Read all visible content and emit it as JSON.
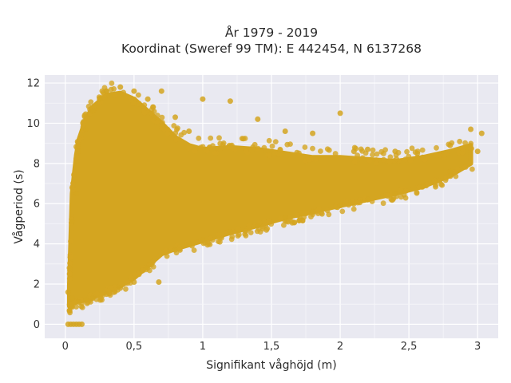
{
  "chart_data": {
    "type": "scatter",
    "title_lines": [
      "År 1979 - 2019",
      "Koordinat (Sweref 99 TM): E 442454, N 6137268"
    ],
    "xlabel": "Signifikant våghöjd (m)",
    "ylabel": "Vågperiod (s)",
    "xlim": [
      -0.15,
      3.15
    ],
    "ylim": [
      -0.7,
      12.4
    ],
    "x_ticks": [
      0,
      0.5,
      1,
      1.5,
      2,
      2.5,
      3
    ],
    "x_tick_labels": [
      "0",
      "0,5",
      "1",
      "1,5",
      "2",
      "2,5",
      "3"
    ],
    "y_ticks": [
      0,
      2,
      4,
      6,
      8,
      10,
      12
    ],
    "y_tick_labels": [
      "0",
      "2",
      "4",
      "6",
      "8",
      "10",
      "12"
    ],
    "grid": true,
    "marker_color": "#d4a520",
    "plot_background": "#e9e9f1",
    "description_points": [
      {
        "x": 0.02,
        "y": 0.0
      },
      {
        "x": 0.04,
        "y": 0.0
      },
      {
        "x": 0.06,
        "y": 0.0
      },
      {
        "x": 0.08,
        "y": 0.0
      },
      {
        "x": 0.1,
        "y": 0.0
      },
      {
        "x": 0.12,
        "y": 0.0
      },
      {
        "x": 0.02,
        "y": 1.6
      },
      {
        "x": 0.03,
        "y": 2.8
      },
      {
        "x": 0.05,
        "y": 5.1
      },
      {
        "x": 0.05,
        "y": 1.3
      },
      {
        "x": 0.08,
        "y": 6.5
      },
      {
        "x": 0.1,
        "y": 8.6
      },
      {
        "x": 0.1,
        "y": 1.1
      },
      {
        "x": 0.15,
        "y": 9.7
      },
      {
        "x": 0.15,
        "y": 1.2
      },
      {
        "x": 0.2,
        "y": 10.6
      },
      {
        "x": 0.2,
        "y": 1.3
      },
      {
        "x": 0.25,
        "y": 11.2
      },
      {
        "x": 0.3,
        "y": 11.6
      },
      {
        "x": 0.3,
        "y": 1.5
      },
      {
        "x": 0.4,
        "y": 11.8
      },
      {
        "x": 0.4,
        "y": 1.8
      },
      {
        "x": 0.5,
        "y": 11.6
      },
      {
        "x": 0.5,
        "y": 2.1
      },
      {
        "x": 0.6,
        "y": 11.2
      },
      {
        "x": 0.6,
        "y": 2.8
      },
      {
        "x": 0.7,
        "y": 11.6
      },
      {
        "x": 0.68,
        "y": 2.1
      },
      {
        "x": 0.8,
        "y": 10.3
      },
      {
        "x": 0.8,
        "y": 3.7
      },
      {
        "x": 0.9,
        "y": 9.6
      },
      {
        "x": 0.9,
        "y": 4.0
      },
      {
        "x": 1.0,
        "y": 11.2
      },
      {
        "x": 1.0,
        "y": 4.2
      },
      {
        "x": 1.2,
        "y": 11.1
      },
      {
        "x": 1.2,
        "y": 4.6
      },
      {
        "x": 1.4,
        "y": 10.2
      },
      {
        "x": 1.4,
        "y": 4.9
      },
      {
        "x": 1.6,
        "y": 9.6
      },
      {
        "x": 1.6,
        "y": 5.3
      },
      {
        "x": 1.8,
        "y": 9.5
      },
      {
        "x": 1.8,
        "y": 5.6
      },
      {
        "x": 2.0,
        "y": 10.5
      },
      {
        "x": 2.0,
        "y": 5.9
      },
      {
        "x": 2.1,
        "y": 8.6
      },
      {
        "x": 2.2,
        "y": 8.7
      },
      {
        "x": 2.2,
        "y": 6.2
      },
      {
        "x": 2.4,
        "y": 8.6
      },
      {
        "x": 2.4,
        "y": 6.5
      },
      {
        "x": 2.6,
        "y": 8.3
      },
      {
        "x": 2.6,
        "y": 6.9
      },
      {
        "x": 2.8,
        "y": 8.9
      },
      {
        "x": 2.8,
        "y": 7.6
      },
      {
        "x": 2.95,
        "y": 9.7
      },
      {
        "x": 3.0,
        "y": 8.6
      },
      {
        "x": 3.03,
        "y": 9.5
      }
    ]
  }
}
